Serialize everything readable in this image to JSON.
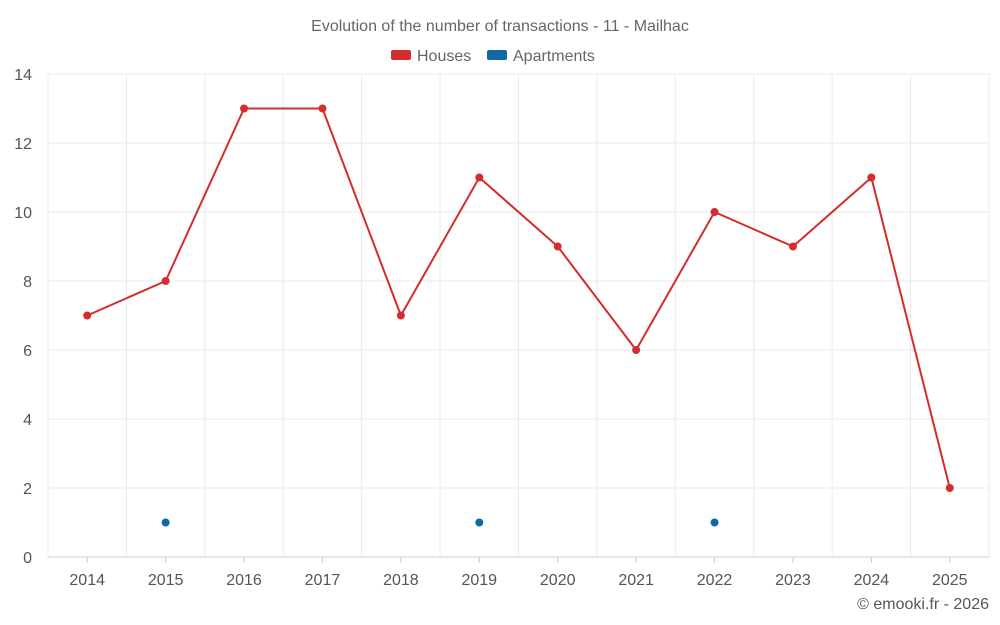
{
  "chart_data": {
    "type": "line",
    "title": "Evolution of the number of transactions - 11 - Mailhac",
    "categories": [
      "2014",
      "2015",
      "2016",
      "2017",
      "2018",
      "2019",
      "2020",
      "2021",
      "2022",
      "2023",
      "2024",
      "2025"
    ],
    "series": [
      {
        "name": "Houses",
        "color": "#d32d2d",
        "values": [
          7,
          8,
          13,
          13,
          7,
          11,
          9,
          6,
          10,
          9,
          11,
          2
        ]
      },
      {
        "name": "Apartments",
        "color": "#0f6aa3",
        "values": [
          null,
          1,
          null,
          null,
          null,
          1,
          null,
          null,
          1,
          null,
          null,
          null
        ]
      }
    ],
    "yticks": [
      "0",
      "2",
      "4",
      "6",
      "8",
      "10",
      "12",
      "14"
    ],
    "ylim": [
      0,
      14
    ],
    "xlabel": "",
    "ylabel": "",
    "grid": true,
    "legend_position": "top-center"
  },
  "credit": "© emooki.fr - 2026"
}
